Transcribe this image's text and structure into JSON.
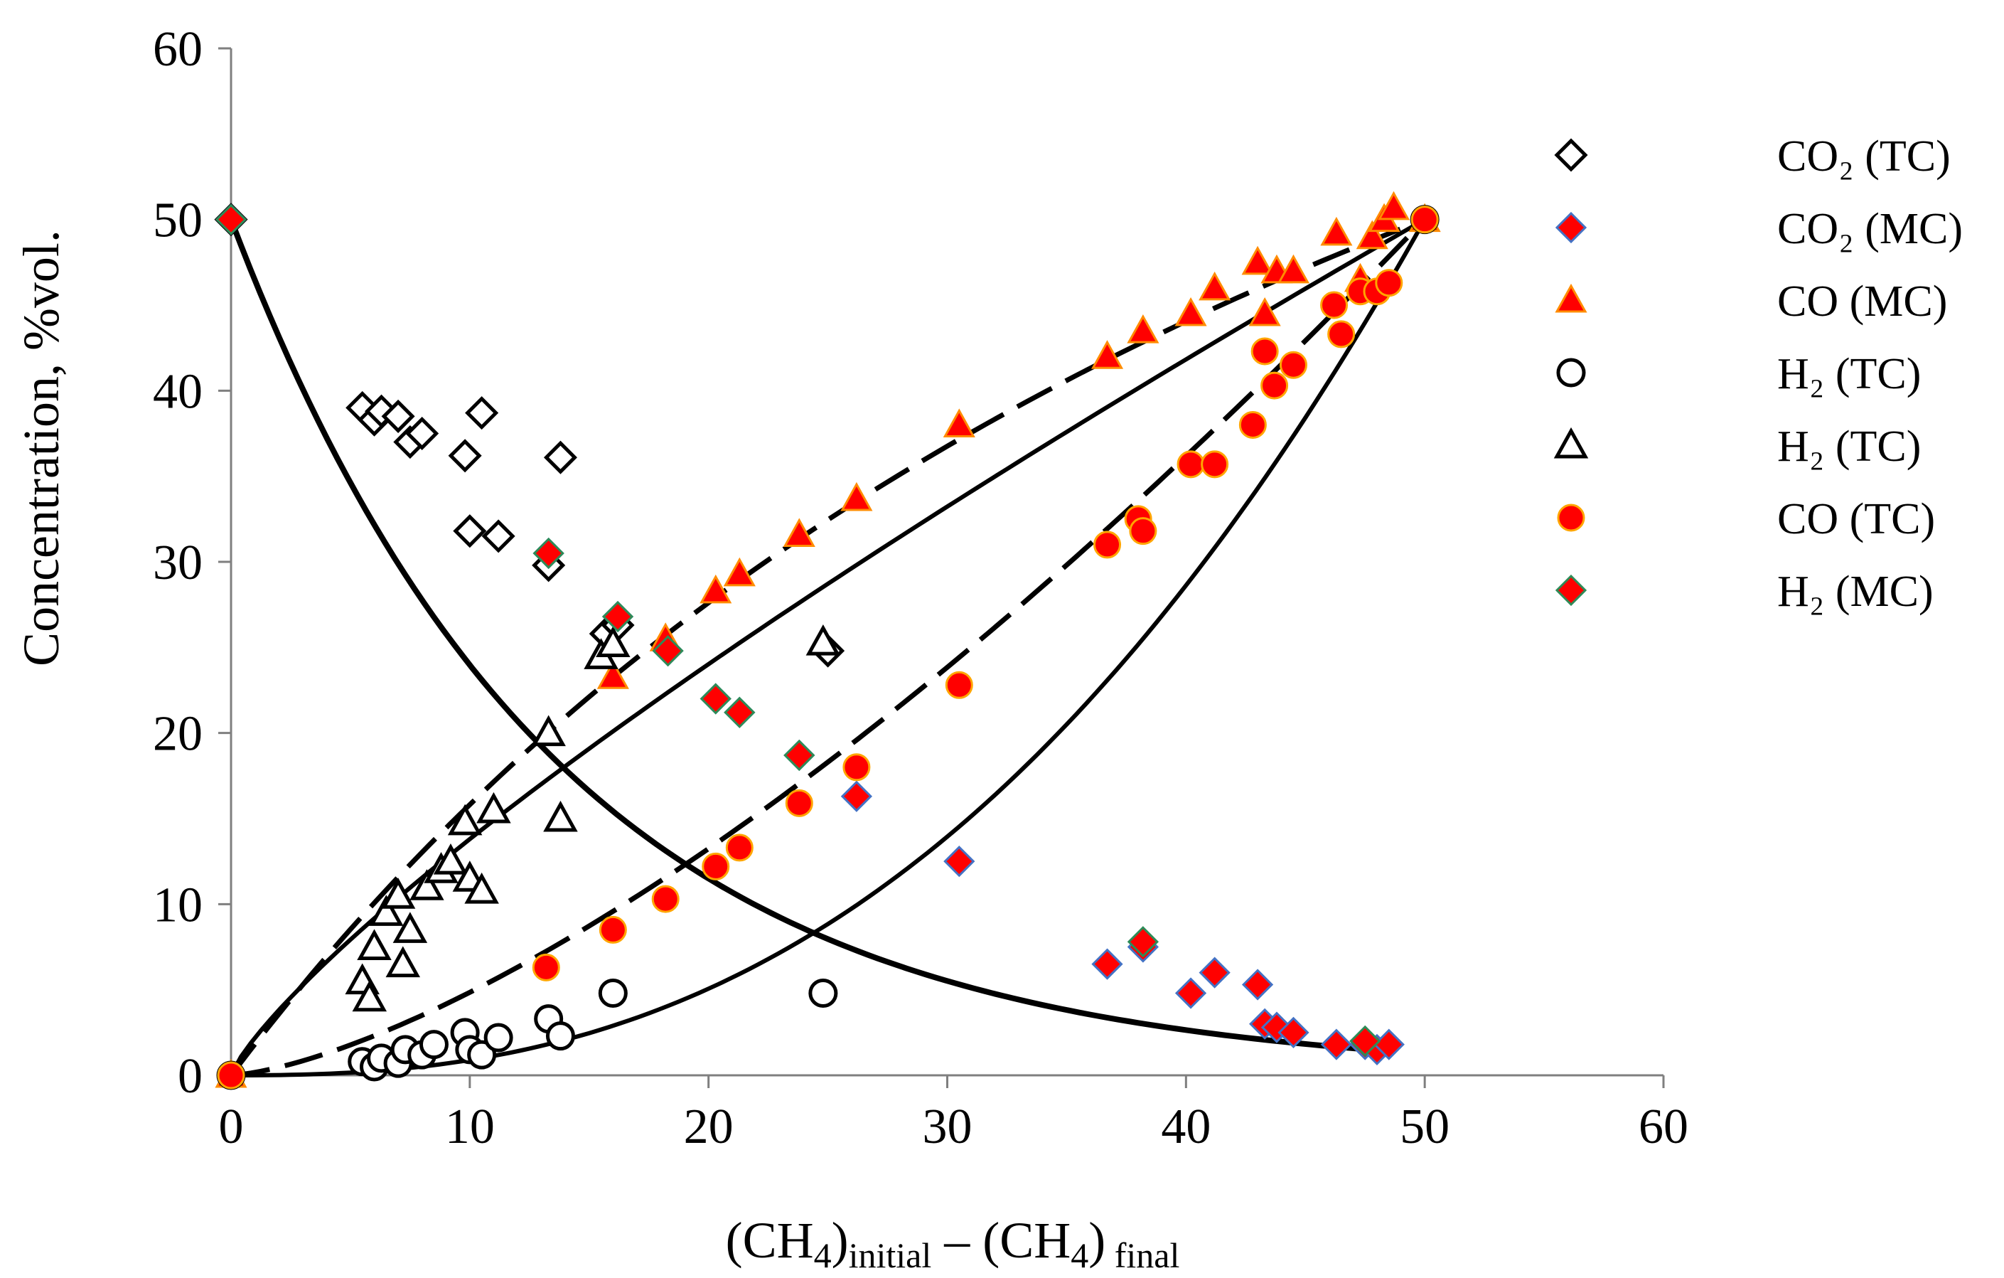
{
  "chart_data": {
    "type": "scatter",
    "xlabel_parts": [
      "(CH",
      "4",
      ")",
      "initial",
      " – (CH",
      "4",
      ")",
      " final"
    ],
    "ylabel": "Concentration, %vol.",
    "xlim": [
      0,
      60
    ],
    "ylim": [
      0,
      60
    ],
    "xticks": [
      0,
      10,
      20,
      30,
      40,
      50,
      60
    ],
    "yticks": [
      0,
      10,
      20,
      30,
      40,
      50,
      60
    ],
    "grid": false,
    "legend_position": "right",
    "series": [
      {
        "name": "CO₂ (TC)",
        "marker": "diamond-open",
        "color": "#000000",
        "points": [
          [
            0,
            50
          ],
          [
            5.5,
            39
          ],
          [
            6,
            38.3
          ],
          [
            6.3,
            38.8
          ],
          [
            7,
            38.5
          ],
          [
            7.5,
            37
          ],
          [
            8,
            37.5
          ],
          [
            9.8,
            36.2
          ],
          [
            10,
            31.8
          ],
          [
            10.5,
            38.7
          ],
          [
            11.2,
            31.5
          ],
          [
            13.3,
            29.8
          ],
          [
            13.8,
            36.1
          ],
          [
            15.7,
            25.8
          ],
          [
            16.2,
            26.3
          ],
          [
            25,
            24.8
          ]
        ]
      },
      {
        "name": "CO₂ (MC)",
        "marker": "diamond-filled",
        "color": "#ff0000",
        "edge": "#4472c4",
        "points": [
          [
            0,
            50
          ],
          [
            13.3,
            30.5
          ],
          [
            16.2,
            26.8
          ],
          [
            18.3,
            24.8
          ],
          [
            20.3,
            22
          ],
          [
            21.3,
            21.2
          ],
          [
            23.8,
            18.7
          ],
          [
            26.2,
            16.3
          ],
          [
            30.5,
            12.5
          ],
          [
            36.7,
            6.5
          ],
          [
            38.2,
            7.5
          ],
          [
            40.2,
            4.8
          ],
          [
            41.2,
            6
          ],
          [
            43,
            5.3
          ],
          [
            43.3,
            3
          ],
          [
            43.8,
            2.8
          ],
          [
            44.5,
            2.5
          ],
          [
            46.3,
            1.8
          ],
          [
            47.5,
            1.8
          ],
          [
            48,
            1.5
          ],
          [
            48.5,
            1.8
          ]
        ]
      },
      {
        "name": "CO (MC)",
        "marker": "triangle-filled",
        "color": "#ff0000",
        "edge": "#ff8c00",
        "points": [
          [
            0,
            0
          ],
          [
            13.3,
            20
          ],
          [
            16,
            23.3
          ],
          [
            18.2,
            25.5
          ],
          [
            20.3,
            28.3
          ],
          [
            21.3,
            29.3
          ],
          [
            23.8,
            31.6
          ],
          [
            26.2,
            33.7
          ],
          [
            30.5,
            38
          ],
          [
            36.7,
            42
          ],
          [
            38.2,
            43.5
          ],
          [
            40.2,
            44.5
          ],
          [
            41.2,
            46
          ],
          [
            43,
            47.5
          ],
          [
            43.3,
            44.5
          ],
          [
            43.8,
            47
          ],
          [
            44.5,
            47
          ],
          [
            46.3,
            49.2
          ],
          [
            47.3,
            46.5
          ],
          [
            47.8,
            49
          ],
          [
            48.3,
            50
          ],
          [
            48.7,
            50.7
          ],
          [
            50,
            50
          ]
        ]
      },
      {
        "name": "H₂ (TC)",
        "marker": "circle-open",
        "color": "#000000",
        "points": [
          [
            0,
            0
          ],
          [
            5.5,
            0.8
          ],
          [
            6,
            0.5
          ],
          [
            6.3,
            1
          ],
          [
            7,
            0.7
          ],
          [
            7.3,
            1.5
          ],
          [
            8,
            1.2
          ],
          [
            8.5,
            1.8
          ],
          [
            9.8,
            2.5
          ],
          [
            10,
            1.5
          ],
          [
            10.5,
            1.2
          ],
          [
            11.2,
            2.2
          ],
          [
            13.3,
            3.3
          ],
          [
            13.8,
            2.3
          ],
          [
            16,
            4.8
          ],
          [
            24.8,
            4.8
          ],
          [
            50,
            50
          ]
        ]
      },
      {
        "name": "H₂ (TC)",
        "legend": false,
        "marker": "triangle-open",
        "color": "#000000",
        "points": [
          [
            5.5,
            5.5
          ],
          [
            5.8,
            4.5
          ],
          [
            6,
            7.5
          ],
          [
            6.5,
            9.5
          ],
          [
            7,
            10.5
          ],
          [
            7.2,
            6.5
          ],
          [
            7.5,
            8.5
          ],
          [
            8.2,
            11
          ],
          [
            8.8,
            12
          ],
          [
            9.2,
            12.5
          ],
          [
            9.8,
            14.8
          ],
          [
            10,
            11.5
          ],
          [
            10.5,
            10.8
          ],
          [
            11,
            15.5
          ],
          [
            13.3,
            20
          ],
          [
            13.8,
            15
          ],
          [
            15.5,
            24.5
          ],
          [
            16,
            25.2
          ],
          [
            24.8,
            25.3
          ]
        ]
      },
      {
        "name": "CO (TC)",
        "marker": "circle-filled",
        "color": "#ff0000",
        "edge": "#ffa500",
        "points": [
          [
            0,
            0
          ],
          [
            13.2,
            6.3
          ],
          [
            16,
            8.5
          ],
          [
            18.2,
            10.3
          ],
          [
            20.3,
            12.2
          ],
          [
            21.3,
            13.3
          ],
          [
            23.8,
            15.9
          ],
          [
            26.2,
            18
          ],
          [
            30.5,
            22.8
          ],
          [
            36.7,
            31
          ],
          [
            38,
            32.5
          ],
          [
            38.2,
            31.8
          ],
          [
            40.2,
            35.7
          ],
          [
            41.2,
            35.7
          ],
          [
            42.8,
            38
          ],
          [
            43.3,
            42.3
          ],
          [
            43.7,
            40.3
          ],
          [
            44.5,
            41.5
          ],
          [
            46.2,
            45
          ],
          [
            46.5,
            43.3
          ],
          [
            47.3,
            45.8
          ],
          [
            48,
            45.8
          ],
          [
            48.5,
            46.3
          ],
          [
            50,
            50
          ]
        ]
      },
      {
        "name": "H₂ (MC)",
        "marker": "diamond-filled",
        "color": "#ff0000",
        "edge": "#2e8b57",
        "points": [
          [
            0,
            50
          ],
          [
            13.3,
            30.5
          ],
          [
            16.2,
            26.8
          ],
          [
            18.3,
            24.8
          ],
          [
            20.3,
            22
          ],
          [
            21.3,
            21.2
          ],
          [
            23.8,
            18.7
          ],
          [
            38.2,
            7.8
          ],
          [
            47.5,
            2
          ]
        ]
      }
    ],
    "curves": [
      {
        "id": "co2-decay",
        "style": "solid-bold",
        "fn": "decay",
        "x0": 0,
        "x1": 48.5
      },
      {
        "id": "co-mc-fit",
        "style": "dashed",
        "fn": "co_mc",
        "x0": 0,
        "x1": 50
      },
      {
        "id": "co-tc-fit",
        "style": "dashed",
        "fn": "co_tc",
        "x0": 0,
        "x1": 50
      },
      {
        "id": "upper-solid",
        "style": "solid",
        "fn": "upper",
        "x0": 0,
        "x1": 50
      },
      {
        "id": "lower-solid",
        "style": "solid",
        "fn": "lower",
        "x0": 0,
        "x1": 50
      }
    ],
    "legend": [
      {
        "label": "CO₂ (TC)",
        "marker": "diamond-open",
        "fill": "none",
        "stroke": "#000000"
      },
      {
        "label": "CO₂ (MC)",
        "marker": "diamond-filled",
        "fill": "#ff0000",
        "stroke": "#4472c4"
      },
      {
        "label": "CO (MC)",
        "marker": "triangle-filled",
        "fill": "#ff0000",
        "stroke": "#ff8c00"
      },
      {
        "label": "H₂ (TC)",
        "marker": "circle-open",
        "fill": "none",
        "stroke": "#000000"
      },
      {
        "label": "H₂ (TC)",
        "marker": "triangle-open",
        "fill": "none",
        "stroke": "#000000"
      },
      {
        "label": "CO (TC)",
        "marker": "circle-filled",
        "fill": "#ff0000",
        "stroke": "#ffa500"
      },
      {
        "label": "H₂ (MC)",
        "marker": "diamond-filled",
        "fill": "#ff0000",
        "stroke": "#2e8b57"
      }
    ]
  }
}
